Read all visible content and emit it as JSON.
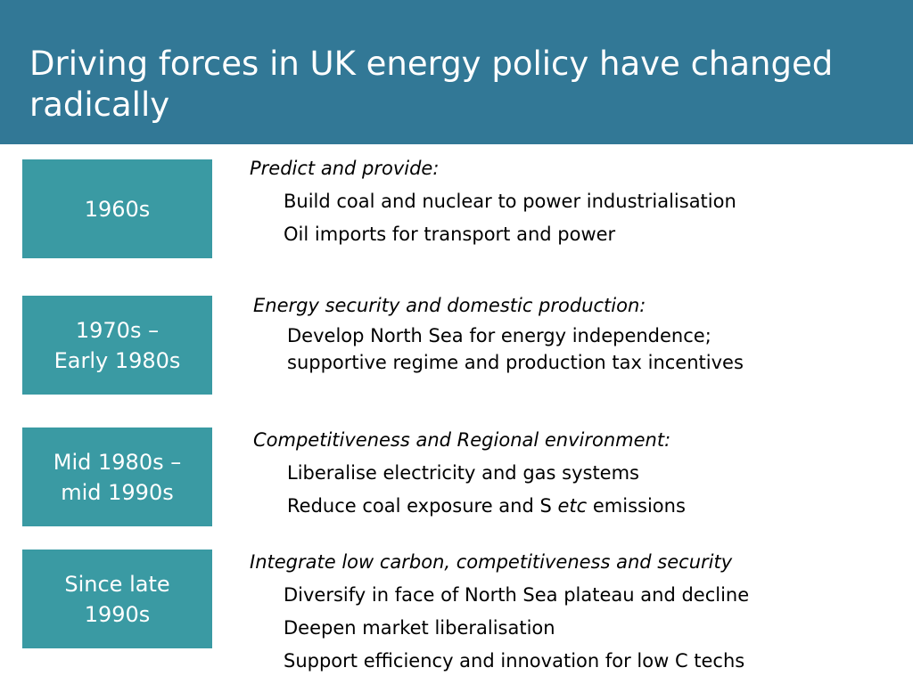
{
  "slide": {
    "title": "Driving forces in UK energy policy have changed radically",
    "colors": {
      "title_bar": "#327896",
      "era_box": "#3a9aa3",
      "title_text": "#ffffff"
    }
  },
  "periods": [
    {
      "era": "1960s",
      "heading": "Predict and provide:",
      "items": [
        "Build coal and nuclear to power industrialisation",
        "Oil imports for transport and power"
      ]
    },
    {
      "era": "1970s –\nEarly 1980s",
      "heading": "Energy security and domestic production:",
      "items": [
        "Develop North Sea for energy independence;",
        "supportive regime and production tax incentives"
      ]
    },
    {
      "era": "Mid 1980s –\nmid 1990s",
      "heading": "Competitiveness and Regional environment:",
      "items": [
        "Liberalise electricity and gas systems"
      ],
      "mixed_item": {
        "before": "Reduce coal exposure and S ",
        "emph": "etc",
        "after": " emissions"
      }
    },
    {
      "era": "Since late\n1990s",
      "heading": "Integrate low carbon, competitiveness and security",
      "items": [
        "Diversify in face of North Sea plateau and decline",
        "Deepen market liberalisation",
        "Support efficiency and innovation for low C techs"
      ]
    }
  ]
}
